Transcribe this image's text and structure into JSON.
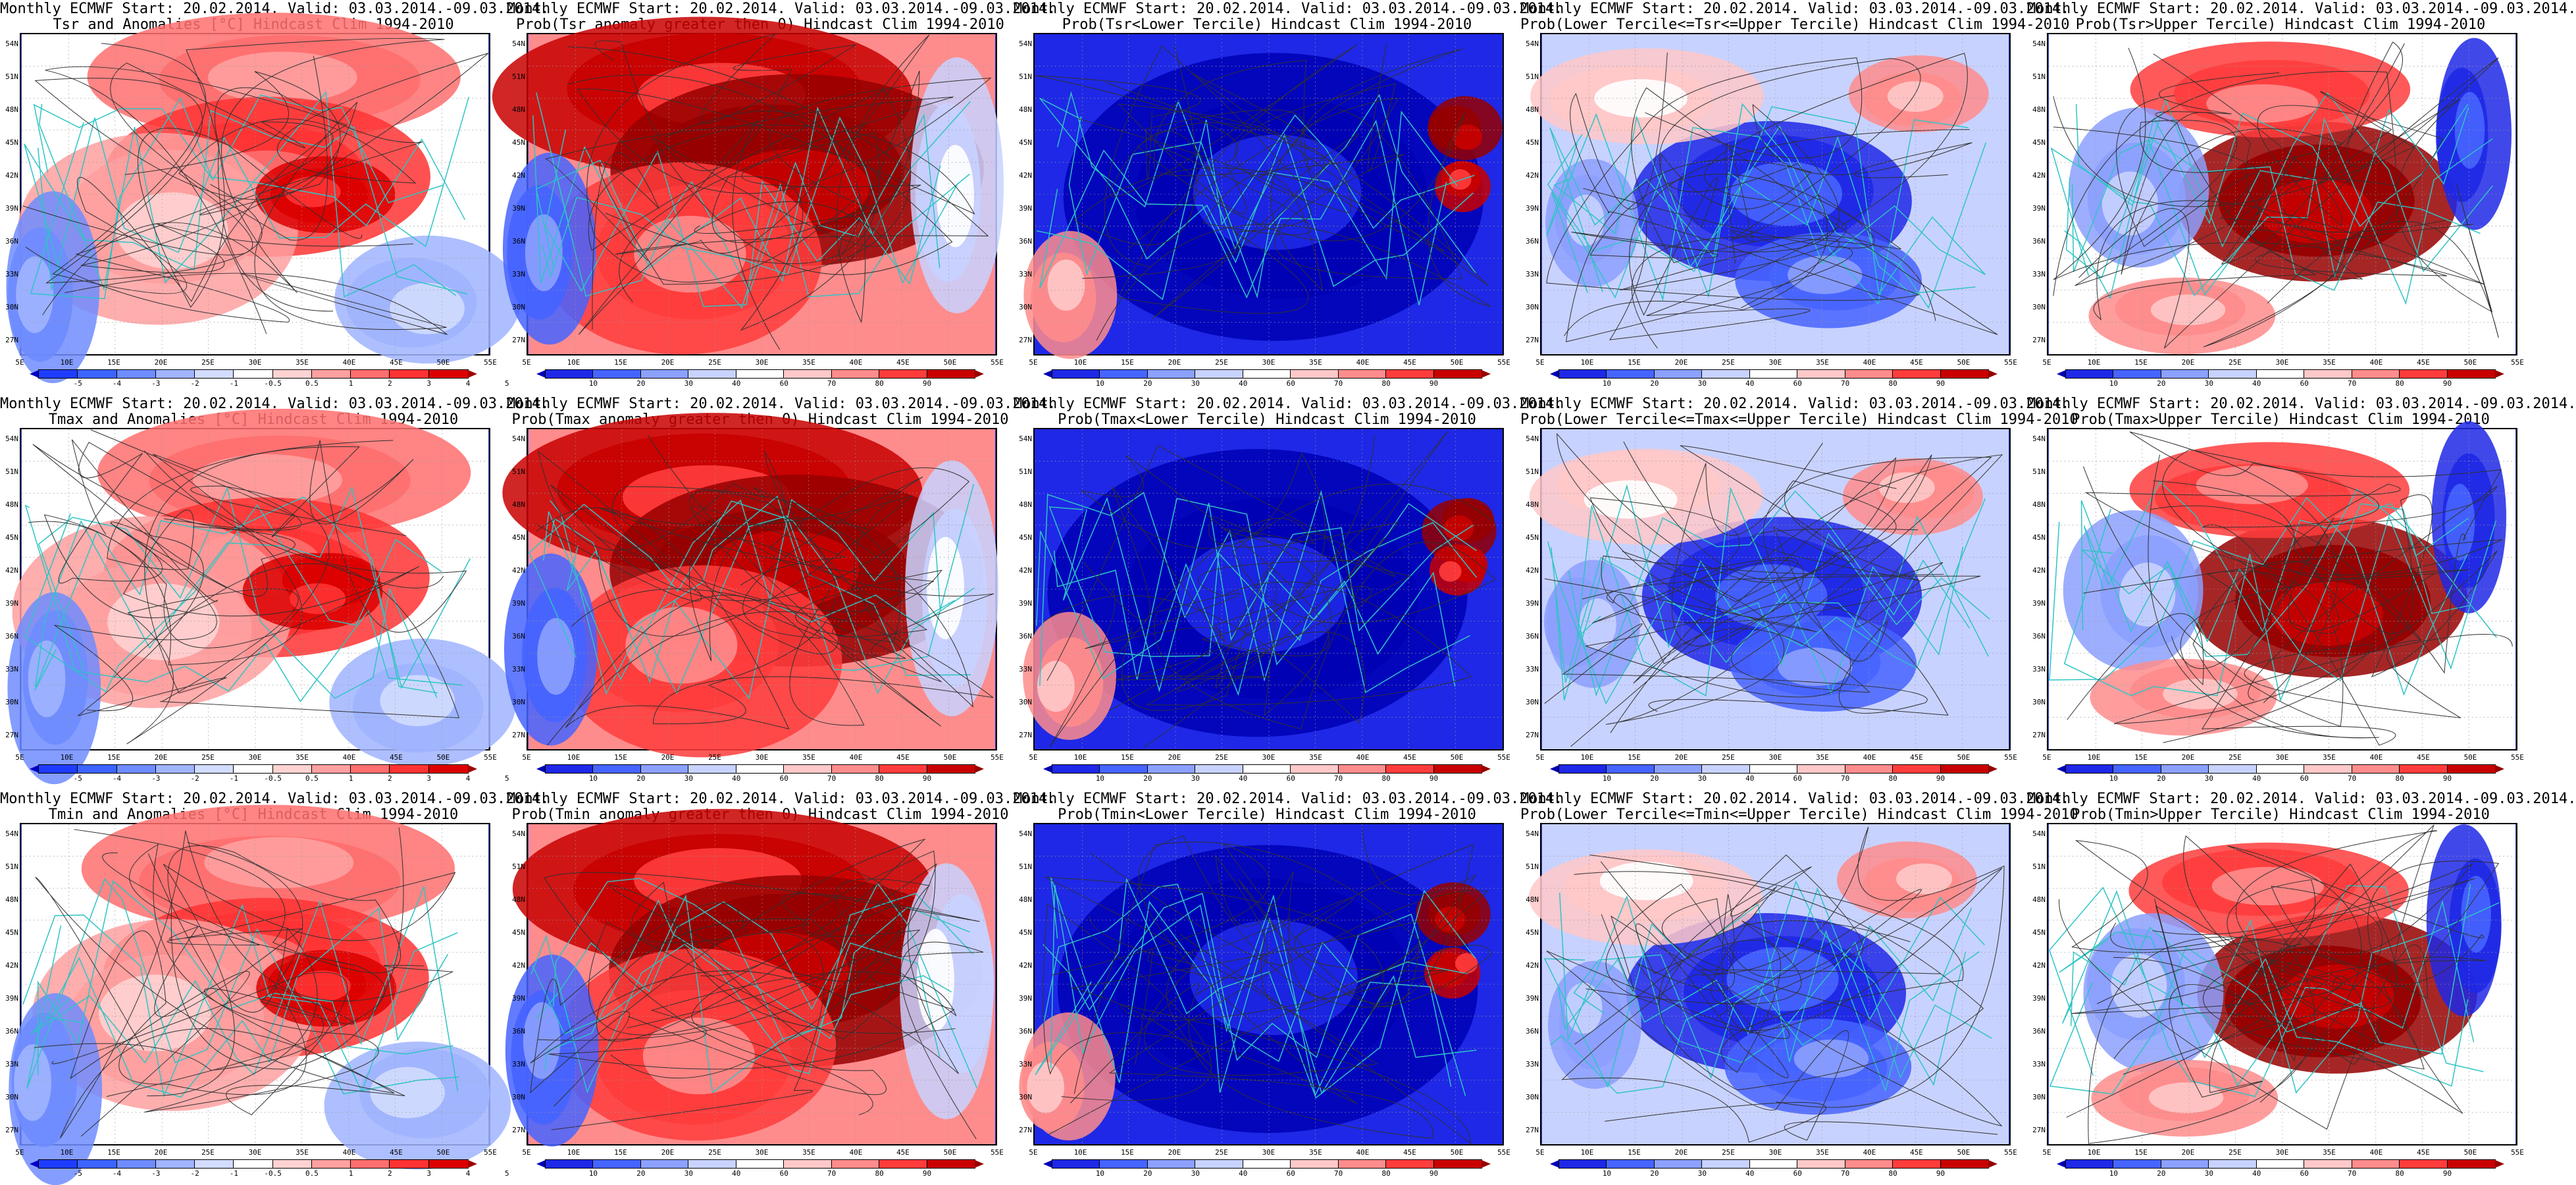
{
  "lat_labels": [
    "54N",
    "51N",
    "48N",
    "45N",
    "42N",
    "39N",
    "36N",
    "33N",
    "30N",
    "27N"
  ],
  "lon_labels": [
    "5E",
    "10E",
    "15E",
    "20E",
    "25E",
    "30E",
    "35E",
    "40E",
    "45E",
    "50E",
    "55E"
  ],
  "anom_scale": {
    "labels": [
      "-5",
      "-4",
      "-3",
      "-2",
      "-1",
      "-0.5",
      "0.5",
      "1",
      "2",
      "3",
      "4",
      "5"
    ],
    "colors": [
      "#0000c8",
      "#1e3cff",
      "#3c64ff",
      "#6e8cff",
      "#a0b4ff",
      "#d2dcff",
      "#ffffff",
      "#ffd2d2",
      "#ffa0a0",
      "#ff6e6e",
      "#ff3232",
      "#dc0000",
      "#a00000"
    ]
  },
  "prob_scale": {
    "labels": [
      "10",
      "20",
      "30",
      "40",
      "60",
      "70",
      "80",
      "90"
    ],
    "colors": [
      "#0000b4",
      "#1e28e6",
      "#4664ff",
      "#8ca0ff",
      "#c8d2ff",
      "#ffffff",
      "#ffc8c8",
      "#ff8c8c",
      "#ff3c3c",
      "#c80000",
      "#960000"
    ]
  },
  "panels": [
    {
      "title1": "Monthly ECMWF Start: 20.02.2014. Valid: 03.03.2014.-09.03.2014.",
      "title2": "Tsr and Anomalies [°C] Hindcast Clim 1994-2010",
      "scale": "anom",
      "field": "anom_warm"
    },
    {
      "title1": "Monthly ECMWF Start: 20.02.2014. Valid: 03.03.2014.-09.03.2014.",
      "title2": "Prob(Tsr anomaly greater then 0) Hindcast Clim 1994-2010",
      "scale": "prob",
      "field": "prob_high"
    },
    {
      "title1": "Monthly ECMWF Start: 20.02.2014. Valid: 03.03.2014.-09.03.2014.",
      "title2": "Prob(Tsr<Lower Tercile) Hindcast Clim 1994-2010",
      "scale": "prob",
      "field": "prob_low"
    },
    {
      "title1": "Monthly ECMWF Start: 20.02.2014. Valid: 03.03.2014.-09.03.2014.",
      "title2": "Prob(Lower Tercile<=Tsr<=Upper Tercile) Hindcast Clim 1994-2010",
      "scale": "prob",
      "field": "prob_mid"
    },
    {
      "title1": "Monthly ECMWF Start: 20.02.2014. Valid: 03.03.2014.-09.03.2014.",
      "title2": "Prob(Tsr>Upper Tercile) Hindcast Clim 1994-2010",
      "scale": "prob",
      "field": "prob_upper"
    },
    {
      "title1": "Monthly ECMWF Start: 20.02.2014. Valid: 03.03.2014.-09.03.2014.",
      "title2": "Tmax and Anomalies [°C] Hindcast Clim 1994-2010",
      "scale": "anom",
      "field": "anom_warm"
    },
    {
      "title1": "Monthly ECMWF Start: 20.02.2014. Valid: 03.03.2014.-09.03.2014.",
      "title2": "Prob(Tmax anomaly greater then 0) Hindcast Clim 1994-2010",
      "scale": "prob",
      "field": "prob_high"
    },
    {
      "title1": "Monthly ECMWF Start: 20.02.2014. Valid: 03.03.2014.-09.03.2014.",
      "title2": "Prob(Tmax<Lower Tercile) Hindcast Clim 1994-2010",
      "scale": "prob",
      "field": "prob_low"
    },
    {
      "title1": "Monthly ECMWF Start: 20.02.2014. Valid: 03.03.2014.-09.03.2014.",
      "title2": "Prob(Lower Tercile<=Tmax<=Upper Tercile) Hindcast Clim 1994-2010",
      "scale": "prob",
      "field": "prob_mid"
    },
    {
      "title1": "Monthly ECMWF Start: 20.02.2014. Valid: 03.03.2014.-09.03.2014.",
      "title2": "Prob(Tmax>Upper Tercile) Hindcast Clim 1994-2010",
      "scale": "prob",
      "field": "prob_upper"
    },
    {
      "title1": "Monthly ECMWF Start: 20.02.2014. Valid: 03.03.2014.-09.03.2014.",
      "title2": "Tmin and Anomalies [°C] Hindcast Clim 1994-2010",
      "scale": "anom",
      "field": "anom_warm"
    },
    {
      "title1": "Monthly ECMWF Start: 20.02.2014. Valid: 03.03.2014.-09.03.2014.",
      "title2": "Prob(Tmin anomaly greater then 0) Hindcast Clim 1994-2010",
      "scale": "prob",
      "field": "prob_high"
    },
    {
      "title1": "Monthly ECMWF Start: 20.02.2014. Valid: 03.03.2014.-09.03.2014.",
      "title2": "Prob(Tmin<Lower Tercile) Hindcast Clim 1994-2010",
      "scale": "prob",
      "field": "prob_low"
    },
    {
      "title1": "Monthly ECMWF Start: 20.02.2014. Valid: 03.03.2014.-09.03.2014.",
      "title2": "Prob(Lower Tercile<=Tmin<=Upper Tercile) Hindcast Clim 1994-2010",
      "scale": "prob",
      "field": "prob_mid"
    },
    {
      "title1": "Monthly ECMWF Start: 20.02.2014. Valid: 03.03.2014.-09.03.2014.",
      "title2": "Prob(Tmin>Upper Tercile) Hindcast Clim 1994-2010",
      "scale": "prob",
      "field": "prob_upper"
    }
  ]
}
